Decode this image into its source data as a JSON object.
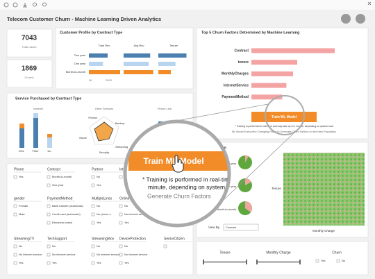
{
  "title": "Telecom Customer Churn - Machine Learning Driven Analytics",
  "kpis": [
    {
      "value": "7043",
      "label": "Total Cases"
    },
    {
      "value": "1869",
      "label": "Churns"
    }
  ],
  "profile": {
    "title": "Customer Profile by Contract Type",
    "columns": [
      "Total Rev",
      "Avg Rev",
      "Tenure"
    ],
    "rows": [
      "Two year",
      "One year",
      "Month-to-month"
    ],
    "axis": [
      "0K",
      "200K"
    ],
    "bars": [
      [
        0.6,
        0.45,
        1.0
      ],
      [
        0.85,
        0.8,
        0.95
      ],
      [
        0.9,
        0.55,
        0.4
      ]
    ]
  },
  "factors": {
    "title": "Top 5 Churn Factors Determined by Machine Learning",
    "labels": [
      "Contract",
      "tenure",
      "MonthlyCharges",
      "InternetService",
      "PaymentMethod"
    ],
    "values": [
      1.0,
      0.55,
      0.5,
      0.42,
      0.37
    ],
    "button": "Train ML Model",
    "note": "* Training is performed in real-time and may take up to 1 minute, depending on system load",
    "hint": "ML Model Every time Changing Filters to Generate Churn Factors for the New Population"
  },
  "services": {
    "title": "Service Purchased by Contract Type",
    "sections": [
      "Internet",
      "Other Services",
      "Phone Line"
    ],
    "internet_labels": [
      "DSL",
      "Fiber",
      "No"
    ],
    "radar_labels": [
      "Protect",
      "Backup",
      "Movie",
      "Streaming",
      "Security"
    ]
  },
  "magnifier": {
    "button": "Train ML Model",
    "note_1": "* Training is performed in real-time and may take up to 1",
    "note_2": "minute, depending on system load",
    "hint": "Generate Churn Factors"
  },
  "filters": [
    {
      "name": "Phone",
      "options": [
        "Yes"
      ]
    },
    {
      "name": "Contract",
      "options": [
        "Month-to-month",
        "One year"
      ]
    },
    {
      "name": "Partner",
      "options": [
        "No",
        "Yes"
      ]
    },
    {
      "name": "Internet",
      "options": [
        "DSL"
      ]
    },
    {
      "name": "gender",
      "options": [
        "Female",
        "Male"
      ]
    },
    {
      "name": "PaymentMethod",
      "options": [
        "Bank transfer (automatic)",
        "Credit card (automatic)",
        "Electronic check"
      ]
    },
    {
      "name": "MultipleLines",
      "options": [
        "No",
        "No phone s",
        "Yes"
      ]
    },
    {
      "name": "OnlineBackup",
      "options": [
        "No",
        "No internet service",
        "Yes"
      ]
    },
    {
      "name": "StreamingTV",
      "options": [
        "No",
        "No internet service",
        "Yes"
      ]
    },
    {
      "name": "TechSupport",
      "options": [
        "No",
        "No internet service",
        "Yes"
      ]
    },
    {
      "name": "StreamingMov",
      "options": [
        "No",
        "No internet service",
        "Yes"
      ]
    },
    {
      "name": "DeviceProtection",
      "options": [
        "No",
        "No internet service",
        "Yes"
      ]
    },
    {
      "name": "SeniorCitizen",
      "options": []
    }
  ],
  "distribution": {
    "title": "Distribution",
    "pie_labels": [
      "Two year",
      "One year",
      "Month-to-month"
    ],
    "y_label": "Tenure",
    "x_label": "Monthly Charge",
    "view_by": "View By",
    "view_value": "Contract"
  },
  "sliders": [
    "Tenure",
    "Monthly Charge"
  ],
  "churn": {
    "name": "Churn",
    "options": [
      "Yes",
      "No"
    ]
  }
}
